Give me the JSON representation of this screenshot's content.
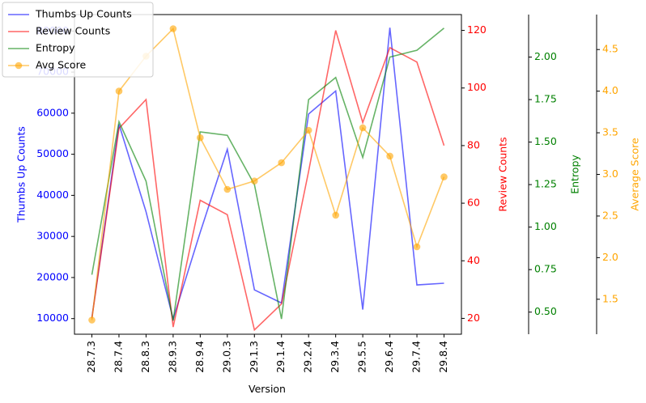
{
  "chart_data": {
    "type": "line",
    "title": "",
    "xlabel": "Version",
    "categories": [
      "28.7.3",
      "28.7.4",
      "28.8.3",
      "28.9.3",
      "28.9.4",
      "29.0.3",
      "29.1.3",
      "29.1.4",
      "29.2.4",
      "29.3.4",
      "29.5.5",
      "29.6.4",
      "29.7.4",
      "29.8.4"
    ],
    "axes": [
      {
        "id": "thumbs",
        "label": "Thumbs Up Counts",
        "color": "#0000ff",
        "ylim": [
          6200,
          84000
        ],
        "ticks": [
          10000,
          20000,
          30000,
          40000,
          50000,
          60000,
          70000,
          80000
        ]
      },
      {
        "id": "reviews",
        "label": "Review Counts",
        "color": "#ff0000",
        "ylim": [
          14.5,
          125.5
        ],
        "ticks": [
          20,
          40,
          60,
          80,
          100,
          120
        ]
      },
      {
        "id": "entropy",
        "label": "Entropy",
        "color": "#008000",
        "ylim": [
          0.37,
          2.25
        ],
        "ticks": [
          0.5,
          0.75,
          1.0,
          1.25,
          1.5,
          1.75,
          2.0
        ]
      },
      {
        "id": "score",
        "label": "Average Score",
        "color": "#ffa500",
        "ylim": [
          1.08,
          4.92
        ],
        "ticks": [
          1.5,
          2.0,
          2.5,
          3.0,
          3.5,
          4.0,
          4.5
        ]
      }
    ],
    "series": [
      {
        "name": "Thumbs Up Counts",
        "axis": "thumbs",
        "color": "#0000ff",
        "marker": false,
        "values": [
          10200,
          57300,
          36000,
          9900,
          31000,
          51200,
          17000,
          13800,
          59800,
          65400,
          12200,
          80800,
          18200,
          18600
        ]
      },
      {
        "name": "Review Counts",
        "axis": "reviews",
        "color": "#ff0000",
        "marker": false,
        "values": [
          20,
          86,
          96,
          17,
          61,
          56,
          16,
          25,
          71,
          120,
          88,
          114,
          109,
          80
        ]
      },
      {
        "name": "Entropy",
        "axis": "entropy",
        "color": "#008000",
        "marker": false,
        "values": [
          0.72,
          1.62,
          1.27,
          0.45,
          1.56,
          1.54,
          1.25,
          0.46,
          1.75,
          1.88,
          1.41,
          2.0,
          2.04,
          2.17
        ]
      },
      {
        "name": "Avg Score",
        "axis": "score",
        "color": "#ffa500",
        "marker": true,
        "values": [
          1.25,
          4.0,
          4.42,
          4.75,
          3.44,
          2.82,
          2.92,
          3.14,
          3.53,
          2.51,
          3.56,
          3.22,
          2.13,
          2.97
        ]
      }
    ],
    "legend_position": "top-left",
    "grid": false
  }
}
